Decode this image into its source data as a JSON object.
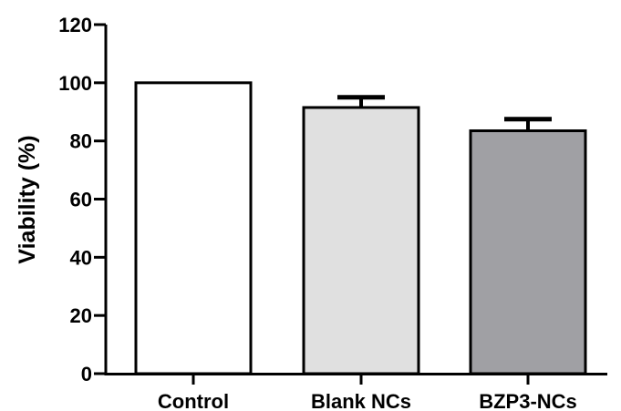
{
  "chart_data": {
    "type": "bar",
    "title": "",
    "xlabel": "",
    "ylabel": "Viability (%)",
    "ylim": [
      0,
      120
    ],
    "yticks": [
      0,
      20,
      40,
      60,
      80,
      100,
      120
    ],
    "categories": [
      "Control",
      "Blank NCs",
      "BZP3-NCs"
    ],
    "values": [
      100,
      91.5,
      83.5
    ],
    "errors": [
      0,
      3.5,
      4
    ],
    "bar_colors": [
      "#ffffff",
      "#e0e0e0",
      "#a0a0a4"
    ],
    "grid": false
  }
}
